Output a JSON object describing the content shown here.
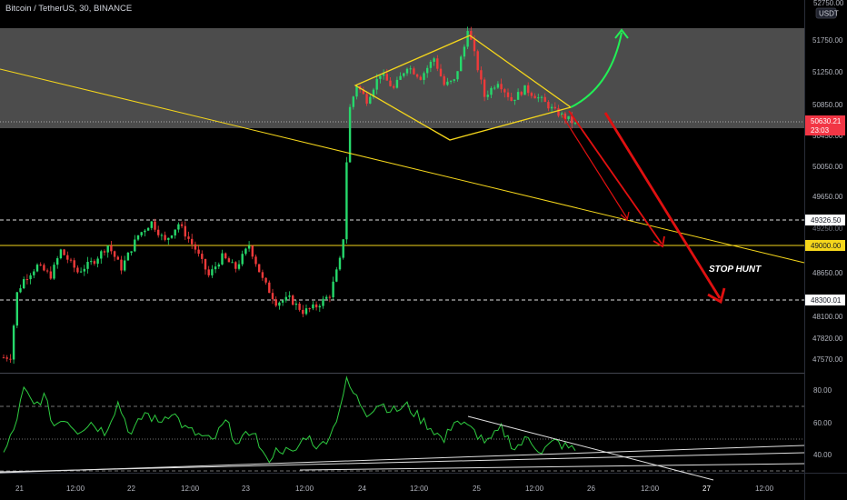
{
  "header": {
    "symbol_title": "Bitcoin / TetherUS, 30, BINANCE",
    "currency_badge": "USDT",
    "top_price_cut": "52750.00"
  },
  "chart_data": {
    "type": "candlestick",
    "symbol": "Bitcoin / TetherUS",
    "interval": "30",
    "exchange": "BINANCE",
    "currency": "USDT",
    "price_axis_ticks": [
      51750.0,
      51250.0,
      50850.0,
      50450.0,
      50050.0,
      49650.0,
      49326.5,
      49000.0,
      48650.0,
      48300.01,
      48100.0,
      47820.0,
      47570.0
    ],
    "price_axis_labels": [
      "51750.00",
      "51250.00",
      "50850.00",
      "50450.00",
      "50050.00",
      "49650.00",
      "49250.00",
      "48650.00",
      "48100.00",
      "47820.00",
      "47570.00"
    ],
    "time_axis_labels": [
      "21",
      "12:00",
      "22",
      "12:00",
      "23",
      "12:00",
      "24",
      "12:00",
      "25",
      "12:00",
      "26",
      "12:00",
      "27",
      "12:00"
    ],
    "current_price": {
      "value": "50630.21",
      "countdown": "23:03"
    },
    "marked_levels": [
      {
        "value": "49326.50",
        "style": "dashed"
      },
      {
        "value": "49000.00",
        "style": "solid",
        "color": "#f5d61b"
      },
      {
        "value": "48300.01",
        "style": "dashed"
      }
    ],
    "resistance_zone": {
      "from": 50600,
      "to": 51990
    },
    "price_path": [
      [
        0,
        47580
      ],
      [
        2,
        47590
      ],
      [
        4,
        48420
      ],
      [
        6,
        48600
      ],
      [
        10,
        48780
      ],
      [
        14,
        48650
      ],
      [
        17,
        48980
      ],
      [
        22,
        48700
      ],
      [
        27,
        48850
      ],
      [
        31,
        49050
      ],
      [
        35,
        48750
      ],
      [
        40,
        49180
      ],
      [
        44,
        49350
      ],
      [
        48,
        49100
      ],
      [
        52,
        49330
      ],
      [
        57,
        49000
      ],
      [
        61,
        48650
      ],
      [
        65,
        48900
      ],
      [
        69,
        48750
      ],
      [
        73,
        49050
      ],
      [
        77,
        48600
      ],
      [
        81,
        48300
      ],
      [
        85,
        48350
      ],
      [
        89,
        48180
      ],
      [
        93,
        48250
      ],
      [
        97,
        48400
      ],
      [
        99,
        48700
      ],
      [
        100,
        48850
      ],
      [
        101,
        49150
      ],
      [
        102,
        50150
      ],
      [
        103,
        50850
      ],
      [
        105,
        51150
      ],
      [
        108,
        50950
      ],
      [
        112,
        51300
      ],
      [
        116,
        51100
      ],
      [
        120,
        51400
      ],
      [
        124,
        51250
      ],
      [
        128,
        51500
      ],
      [
        131,
        51150
      ],
      [
        134,
        51200
      ],
      [
        137,
        51650
      ],
      [
        138,
        51900
      ],
      [
        140,
        51550
      ],
      [
        143,
        51000
      ],
      [
        147,
        51200
      ],
      [
        151,
        50950
      ],
      [
        155,
        51100
      ],
      [
        160,
        50950
      ],
      [
        164,
        50800
      ],
      [
        168,
        50700
      ],
      [
        170,
        50630
      ]
    ],
    "annotations": [
      {
        "type": "text",
        "label": "STOP HUNT"
      },
      {
        "type": "pattern",
        "label": "diamond",
        "color": "#f5d61b"
      },
      {
        "type": "trendline",
        "color": "#f5d61b"
      },
      {
        "type": "arrow",
        "direction": "up",
        "color": "#22ee55"
      },
      {
        "type": "arrow",
        "direction": "down",
        "color": "#e01010",
        "target": "49326.50"
      },
      {
        "type": "arrow",
        "direction": "down",
        "color": "#e01010",
        "target": "49000.00"
      },
      {
        "type": "arrow",
        "direction": "down",
        "color": "#e01010",
        "target": "48300.01"
      }
    ],
    "indicator": {
      "name": "RSI",
      "axis_labels": [
        "80.00",
        "60.00",
        "40.00"
      ],
      "levels": [
        70,
        50,
        30
      ],
      "values": [
        [
          0,
          40
        ],
        [
          3,
          55
        ],
        [
          6,
          80
        ],
        [
          9,
          70
        ],
        [
          12,
          76
        ],
        [
          15,
          58
        ],
        [
          18,
          63
        ],
        [
          22,
          55
        ],
        [
          26,
          60
        ],
        [
          30,
          54
        ],
        [
          34,
          72
        ],
        [
          38,
          52
        ],
        [
          42,
          66
        ],
        [
          46,
          60
        ],
        [
          50,
          67
        ],
        [
          54,
          56
        ],
        [
          58,
          52
        ],
        [
          62,
          48
        ],
        [
          66,
          60
        ],
        [
          70,
          46
        ],
        [
          74,
          56
        ],
        [
          78,
          36
        ],
        [
          82,
          44
        ],
        [
          86,
          40
        ],
        [
          90,
          52
        ],
        [
          94,
          44
        ],
        [
          98,
          56
        ],
        [
          100,
          70
        ],
        [
          102,
          85
        ],
        [
          104,
          78
        ],
        [
          108,
          66
        ],
        [
          112,
          72
        ],
        [
          116,
          67
        ],
        [
          120,
          70
        ],
        [
          124,
          62
        ],
        [
          128,
          55
        ],
        [
          131,
          48
        ],
        [
          134,
          62
        ],
        [
          137,
          58
        ],
        [
          140,
          54
        ],
        [
          144,
          47
        ],
        [
          148,
          56
        ],
        [
          152,
          44
        ],
        [
          156,
          50
        ],
        [
          160,
          42
        ],
        [
          164,
          48
        ],
        [
          168,
          44
        ],
        [
          170,
          43
        ]
      ]
    }
  }
}
